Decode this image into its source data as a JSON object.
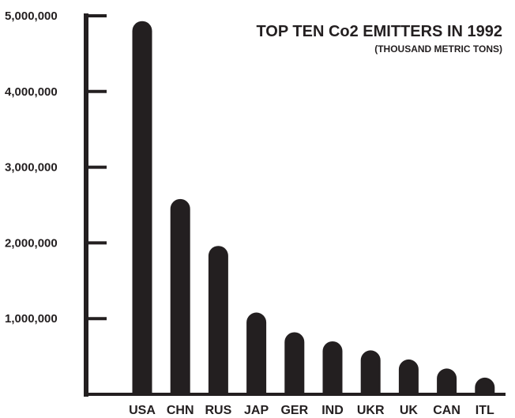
{
  "chart_data": {
    "type": "bar",
    "title": "TOP TEN Co2 EMITTERS IN 1992",
    "subtitle": "(THOUSAND METRIC TONS)",
    "xlabel": "",
    "ylabel": "",
    "categories": [
      "USA",
      "CHN",
      "RUS",
      "JAP",
      "GER",
      "IND",
      "UKR",
      "UK",
      "CAN",
      "ITL"
    ],
    "values": [
      4930000,
      2580000,
      1960000,
      1080000,
      820000,
      700000,
      580000,
      460000,
      340000,
      220000
    ],
    "ylim": [
      0,
      5000000
    ],
    "yticks": [
      1000000,
      2000000,
      3000000,
      4000000,
      5000000
    ],
    "ytick_labels": [
      "1,000,000",
      "2,000,000",
      "3,000,000",
      "4,000,000",
      "5,000,000"
    ],
    "grid": false,
    "legend": "none",
    "bar_color": "#231f20"
  }
}
